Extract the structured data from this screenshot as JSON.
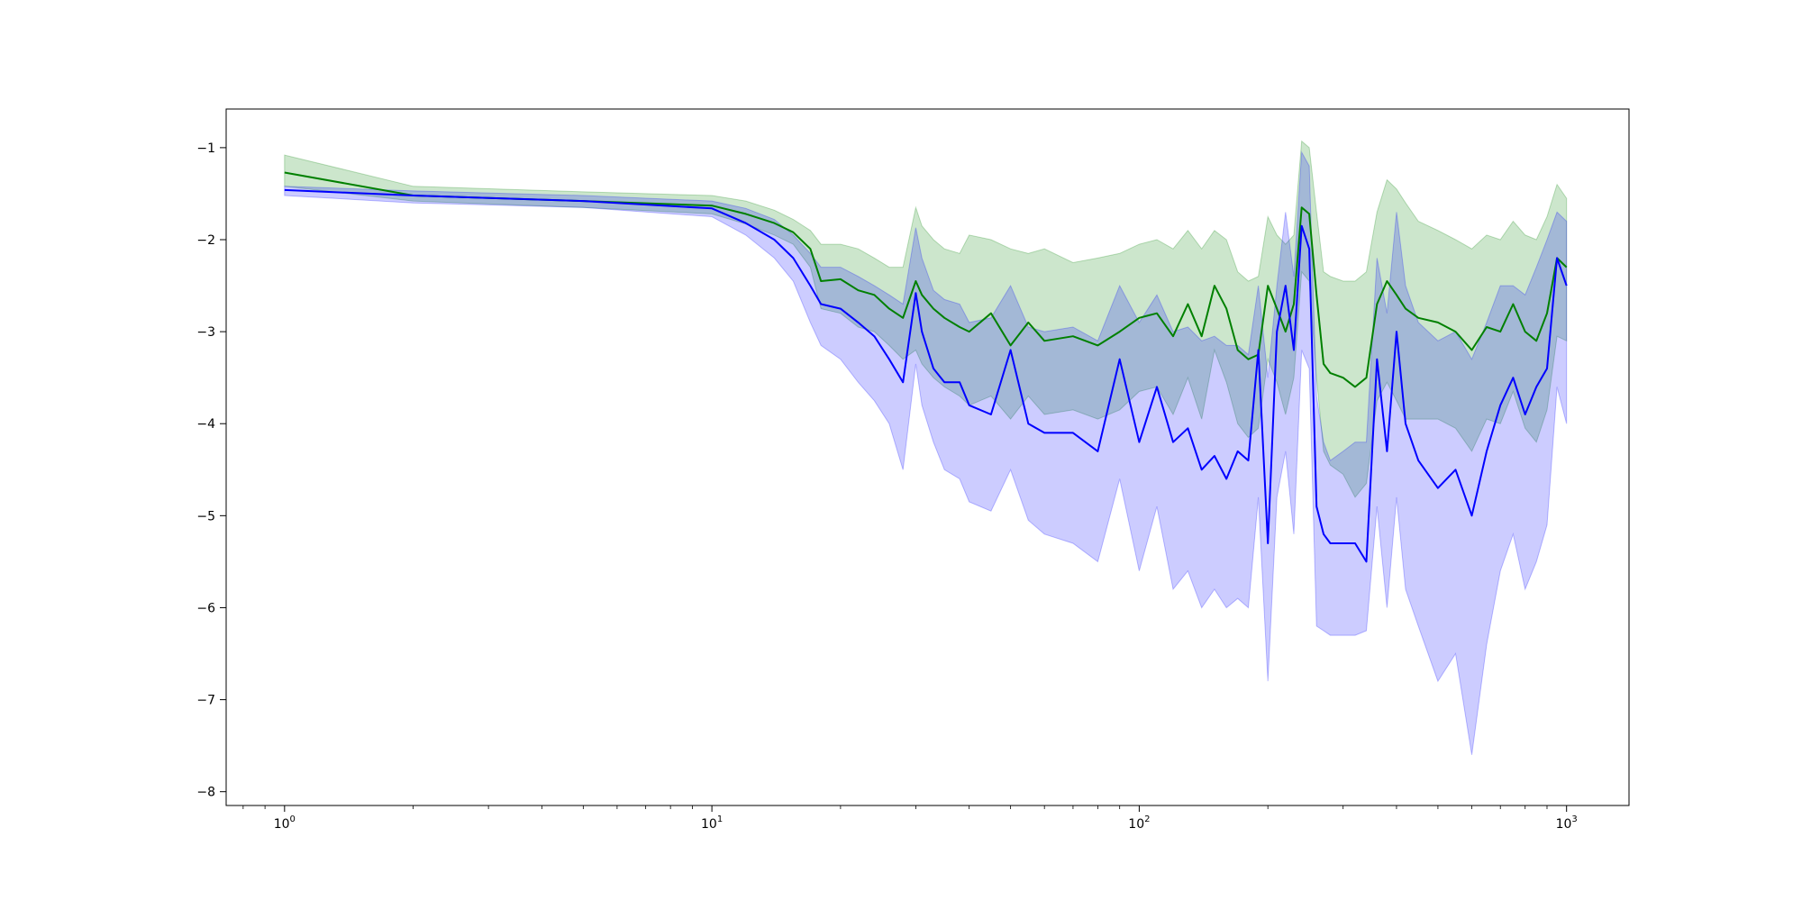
{
  "chart_data": {
    "type": "line",
    "x_scale": "log",
    "xlim": [
      0.73,
      1400
    ],
    "ylim": [
      -8.15,
      -0.58
    ],
    "grid": false,
    "legend": "none",
    "x_ticks": [
      {
        "value": 1,
        "base": "10",
        "exp": "0"
      },
      {
        "value": 10,
        "base": "10",
        "exp": "1"
      },
      {
        "value": 100,
        "base": "10",
        "exp": "2"
      },
      {
        "value": 1000,
        "base": "10",
        "exp": "3"
      }
    ],
    "y_ticks": [
      {
        "value": -1,
        "label": "−1"
      },
      {
        "value": -2,
        "label": "−2"
      },
      {
        "value": -3,
        "label": "−3"
      },
      {
        "value": -4,
        "label": "−4"
      },
      {
        "value": -5,
        "label": "−5"
      },
      {
        "value": -6,
        "label": "−6"
      },
      {
        "value": -7,
        "label": "−7"
      },
      {
        "value": -8,
        "label": "−8"
      }
    ],
    "series": [
      {
        "color": "#008000",
        "band_color": "#008000",
        "band_opacity": 0.2,
        "x": [
          1,
          2,
          5,
          10,
          12,
          14,
          15.5,
          17,
          18,
          20,
          22,
          24,
          26,
          28,
          30,
          31,
          33,
          35,
          38,
          40,
          45,
          50,
          55,
          60,
          70,
          80,
          90,
          100,
          110,
          120,
          130,
          140,
          150,
          160,
          170,
          180,
          190,
          200,
          210,
          220,
          230,
          240,
          250,
          260,
          270,
          280,
          300,
          320,
          340,
          360,
          380,
          400,
          420,
          450,
          500,
          550,
          600,
          650,
          700,
          750,
          800,
          850,
          900,
          950,
          1000
        ],
        "y": [
          -1.27,
          -1.52,
          -1.58,
          -1.63,
          -1.72,
          -1.82,
          -1.92,
          -2.1,
          -2.45,
          -2.43,
          -2.55,
          -2.6,
          -2.75,
          -2.85,
          -2.45,
          -2.6,
          -2.75,
          -2.85,
          -2.95,
          -3.0,
          -2.8,
          -3.15,
          -2.9,
          -3.1,
          -3.05,
          -3.15,
          -3.0,
          -2.85,
          -2.8,
          -3.05,
          -2.7,
          -3.05,
          -2.5,
          -2.75,
          -3.2,
          -3.3,
          -3.25,
          -2.5,
          -2.75,
          -3.0,
          -2.7,
          -1.65,
          -1.72,
          -2.6,
          -3.35,
          -3.45,
          -3.5,
          -3.6,
          -3.5,
          -2.7,
          -2.45,
          -2.6,
          -2.75,
          -2.85,
          -2.9,
          -3.0,
          -3.2,
          -2.95,
          -3.0,
          -2.7,
          -3.0,
          -3.1,
          -2.8,
          -2.2,
          -2.3
        ],
        "upper": [
          -1.08,
          -1.42,
          -1.48,
          -1.52,
          -1.58,
          -1.68,
          -1.78,
          -1.9,
          -2.05,
          -2.05,
          -2.1,
          -2.2,
          -2.3,
          -2.3,
          -1.65,
          -1.85,
          -2.0,
          -2.1,
          -2.15,
          -1.95,
          -2.0,
          -2.1,
          -2.15,
          -2.1,
          -2.25,
          -2.2,
          -2.15,
          -2.05,
          -2.0,
          -2.1,
          -1.9,
          -2.1,
          -1.9,
          -2.0,
          -2.35,
          -2.45,
          -2.4,
          -1.75,
          -1.95,
          -2.05,
          -1.95,
          -0.93,
          -1.0,
          -1.7,
          -2.35,
          -2.4,
          -2.45,
          -2.45,
          -2.35,
          -1.7,
          -1.35,
          -1.45,
          -1.6,
          -1.8,
          -1.9,
          -2.0,
          -2.1,
          -1.95,
          -2.0,
          -1.8,
          -1.95,
          -2.0,
          -1.75,
          -1.4,
          -1.55
        ],
        "lower": [
          -1.42,
          -1.58,
          -1.65,
          -1.72,
          -1.83,
          -1.95,
          -2.05,
          -2.3,
          -2.75,
          -2.8,
          -2.95,
          -3.0,
          -3.15,
          -3.3,
          -3.2,
          -3.35,
          -3.5,
          -3.6,
          -3.7,
          -3.8,
          -3.7,
          -3.95,
          -3.7,
          -3.9,
          -3.85,
          -3.95,
          -3.85,
          -3.65,
          -3.6,
          -3.9,
          -3.5,
          -3.95,
          -3.2,
          -3.55,
          -4.0,
          -4.15,
          -4.05,
          -3.3,
          -3.55,
          -3.9,
          -3.5,
          -2.35,
          -2.45,
          -3.5,
          -4.3,
          -4.45,
          -4.55,
          -4.8,
          -4.65,
          -3.75,
          -3.55,
          -3.75,
          -3.95,
          -3.95,
          -3.95,
          -4.05,
          -4.3,
          -3.95,
          -4.0,
          -3.65,
          -4.05,
          -4.2,
          -3.85,
          -3.05,
          -3.1
        ]
      },
      {
        "color": "#0000ff",
        "band_color": "#0000ff",
        "band_opacity": 0.2,
        "x": [
          1,
          2,
          5,
          10,
          12,
          14,
          15.5,
          17,
          18,
          20,
          22,
          24,
          26,
          28,
          30,
          31,
          33,
          35,
          38,
          40,
          45,
          50,
          55,
          60,
          70,
          80,
          90,
          100,
          110,
          120,
          130,
          140,
          150,
          160,
          170,
          180,
          190,
          200,
          210,
          220,
          230,
          240,
          250,
          260,
          270,
          280,
          300,
          320,
          340,
          360,
          380,
          400,
          420,
          450,
          500,
          550,
          600,
          650,
          700,
          750,
          800,
          850,
          900,
          950,
          1000
        ],
        "y": [
          -1.46,
          -1.52,
          -1.58,
          -1.66,
          -1.82,
          -2.0,
          -2.2,
          -2.5,
          -2.7,
          -2.75,
          -2.9,
          -3.05,
          -3.3,
          -3.55,
          -2.58,
          -3.0,
          -3.4,
          -3.55,
          -3.55,
          -3.8,
          -3.9,
          -3.2,
          -4.0,
          -4.1,
          -4.1,
          -4.3,
          -3.3,
          -4.2,
          -3.6,
          -4.2,
          -4.05,
          -4.5,
          -4.35,
          -4.6,
          -4.3,
          -4.4,
          -3.2,
          -5.3,
          -3.0,
          -2.5,
          -3.2,
          -1.85,
          -2.1,
          -4.9,
          -5.2,
          -5.3,
          -5.3,
          -5.3,
          -5.5,
          -3.3,
          -4.3,
          -3.0,
          -4.0,
          -4.4,
          -4.7,
          -4.5,
          -5.0,
          -4.3,
          -3.8,
          -3.5,
          -3.9,
          -3.6,
          -3.4,
          -2.2,
          -2.5
        ],
        "upper": [
          -1.42,
          -1.47,
          -1.52,
          -1.58,
          -1.66,
          -1.78,
          -1.95,
          -2.15,
          -2.3,
          -2.3,
          -2.4,
          -2.5,
          -2.6,
          -2.7,
          -1.87,
          -2.2,
          -2.55,
          -2.65,
          -2.7,
          -2.9,
          -2.85,
          -2.5,
          -2.95,
          -3.0,
          -2.95,
          -3.1,
          -2.5,
          -2.9,
          -2.6,
          -3.0,
          -2.95,
          -3.1,
          -3.05,
          -3.15,
          -3.15,
          -3.25,
          -2.5,
          -3.5,
          -2.5,
          -1.7,
          -2.4,
          -1.05,
          -1.2,
          -3.7,
          -4.2,
          -4.4,
          -4.3,
          -4.2,
          -4.2,
          -2.2,
          -2.8,
          -1.7,
          -2.5,
          -2.9,
          -3.1,
          -3.0,
          -3.3,
          -2.9,
          -2.5,
          -2.5,
          -2.6,
          -2.3,
          -2.0,
          -1.7,
          -1.8
        ],
        "lower": [
          -1.52,
          -1.6,
          -1.65,
          -1.75,
          -1.95,
          -2.2,
          -2.45,
          -2.9,
          -3.15,
          -3.3,
          -3.55,
          -3.75,
          -4.0,
          -4.5,
          -3.35,
          -3.8,
          -4.2,
          -4.5,
          -4.6,
          -4.85,
          -4.95,
          -4.5,
          -5.05,
          -5.2,
          -5.3,
          -5.5,
          -4.6,
          -5.6,
          -4.9,
          -5.8,
          -5.6,
          -6.0,
          -5.8,
          -6.0,
          -5.9,
          -6.0,
          -4.8,
          -6.8,
          -4.8,
          -4.3,
          -5.2,
          -3.2,
          -3.4,
          -6.2,
          -6.25,
          -6.3,
          -6.3,
          -6.3,
          -6.25,
          -4.9,
          -6.0,
          -4.8,
          -5.8,
          -6.2,
          -6.8,
          -6.5,
          -7.6,
          -6.4,
          -5.6,
          -5.2,
          -5.8,
          -5.5,
          -5.1,
          -3.6,
          -4.0
        ]
      }
    ]
  }
}
